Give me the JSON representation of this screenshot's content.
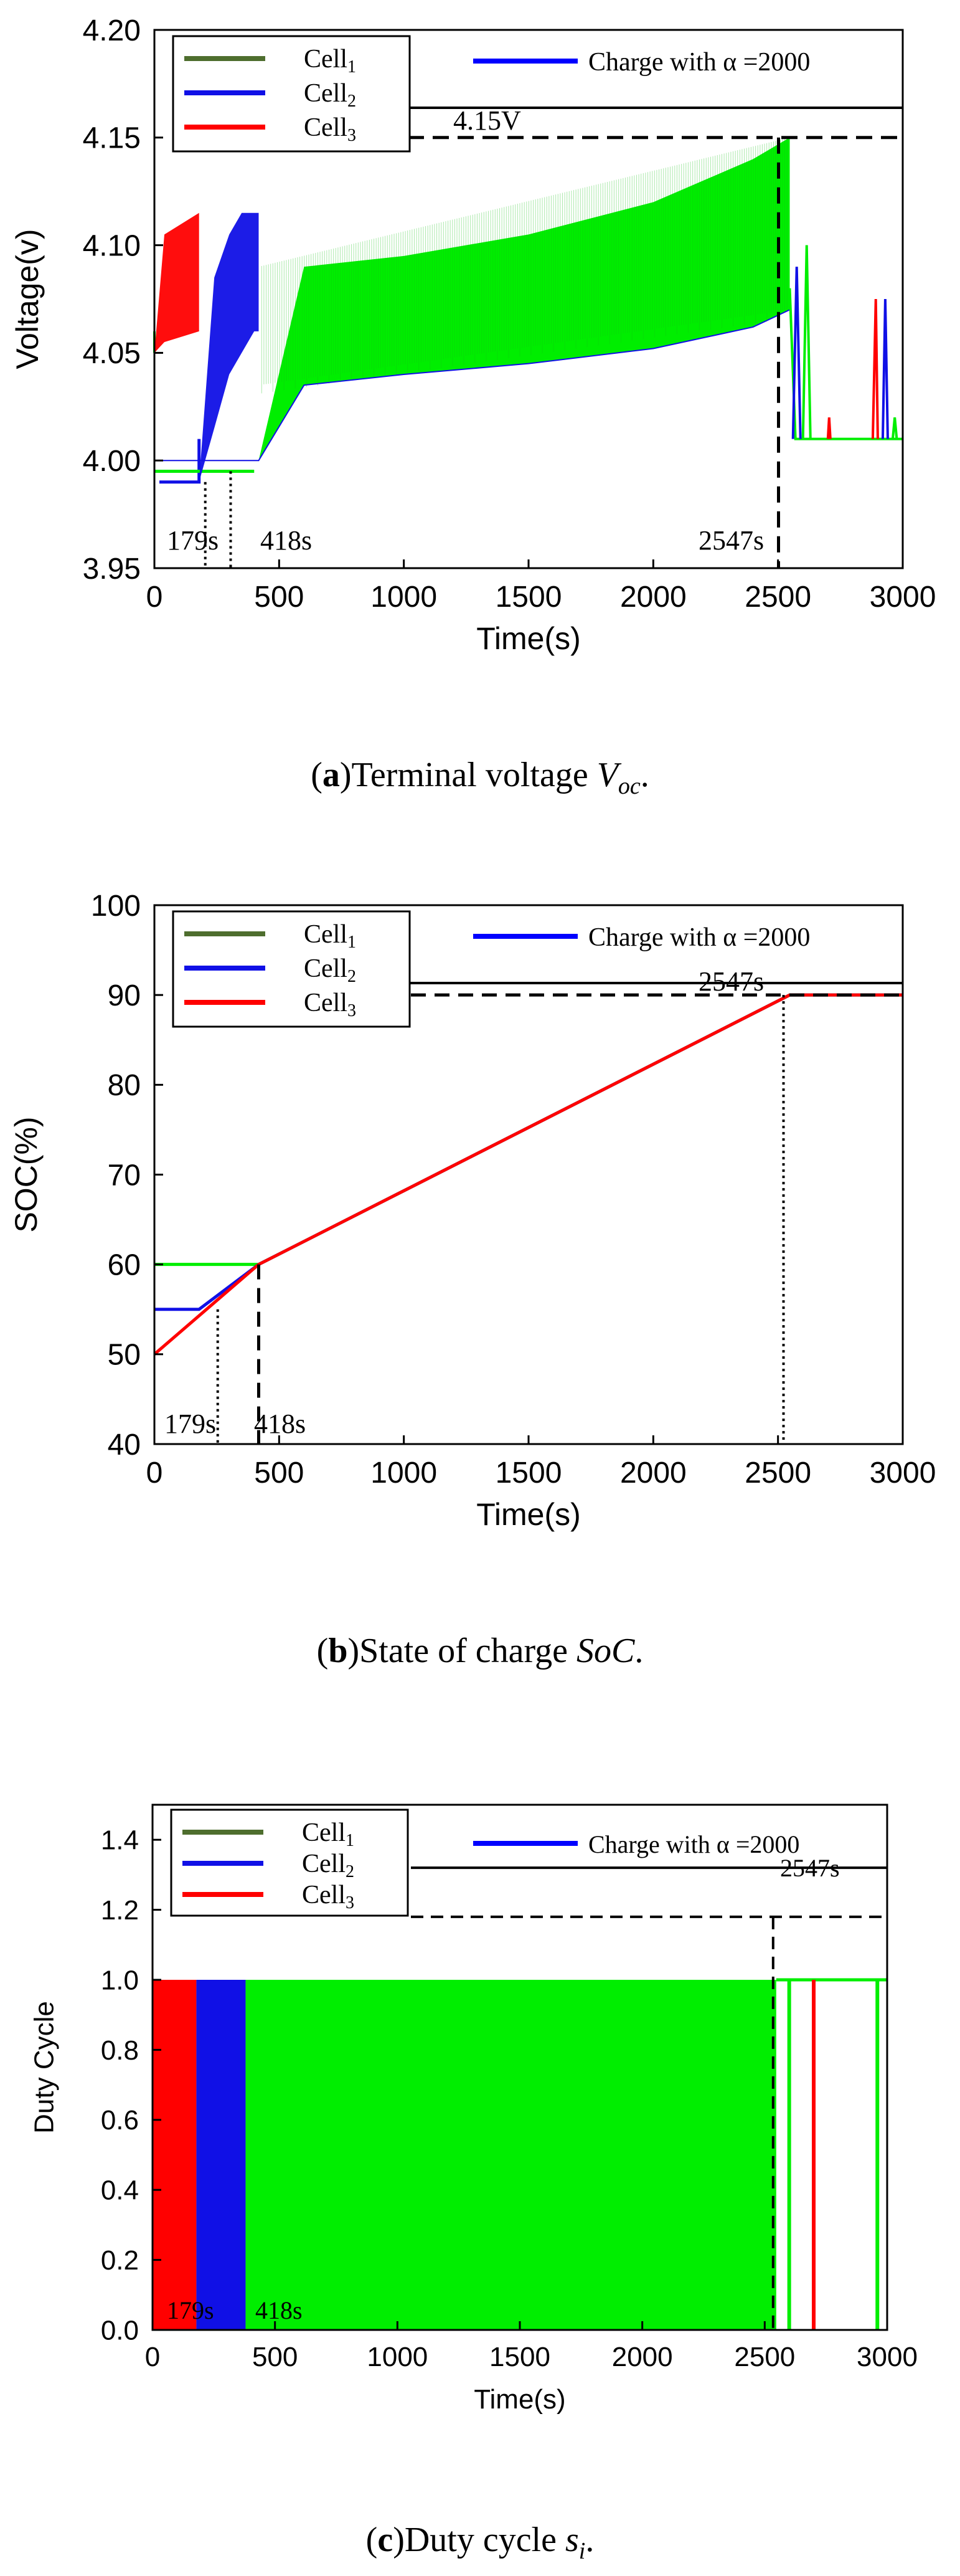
{
  "colors": {
    "cell1": "#4e6e2e",
    "cell2": "#1010e6",
    "cell3": "#ff0000",
    "charge": "#0000ff",
    "fill_green": "#00ee00"
  },
  "legend": {
    "cell1": {
      "base": "Cell",
      "sub": "1"
    },
    "cell2": {
      "base": "Cell",
      "sub": "2"
    },
    "cell3": {
      "base": "Cell",
      "sub": "3"
    },
    "charge": "Charge with  α =2000"
  },
  "chart_data": [
    {
      "id": "a",
      "type": "line",
      "title": "",
      "xlabel": "Time(s)",
      "ylabel": "Voltage(v)",
      "xlim": [
        0,
        3000
      ],
      "ylim": [
        3.95,
        4.2
      ],
      "xticks": [
        "0",
        "500",
        "1000",
        "1500",
        "2000",
        "2500",
        "3000"
      ],
      "yticks": [
        "3.95",
        "4.00",
        "4.05",
        "4.10",
        "4.15",
        "4.20"
      ],
      "ytick_values": [
        3.95,
        4.0,
        4.05,
        4.1,
        4.15,
        4.2
      ],
      "annotations": {
        "t1": "179s",
        "t2": "418s",
        "t3": "2547s",
        "v": "4.15V"
      },
      "marks": {
        "t1": 179,
        "t2": 418,
        "t3": 2547,
        "v": 4.15
      },
      "series": [
        {
          "name": "Cell1",
          "note": "oscillating band (lower/upper envelopes)",
          "x": [
            0,
            418,
            600,
            1000,
            1500,
            2000,
            2400,
            2547
          ],
          "lower": [
            4.0,
            4.0,
            4.035,
            4.04,
            4.045,
            4.052,
            4.062,
            4.07
          ],
          "upper": [
            4.0,
            4.0,
            4.09,
            4.095,
            4.105,
            4.12,
            4.14,
            4.15
          ]
        },
        {
          "name": "Cell2",
          "x": [
            0,
            179,
            240,
            300,
            350,
            400,
            418
          ],
          "lower": [
            3.99,
            3.99,
            4.015,
            4.04,
            4.05,
            4.06,
            4.06
          ],
          "upper": [
            3.99,
            3.99,
            4.085,
            4.105,
            4.115,
            4.115,
            4.115
          ]
        },
        {
          "name": "Cell3",
          "x": [
            0,
            40,
            179
          ],
          "lower": [
            4.05,
            4.055,
            4.06
          ],
          "upper": [
            4.05,
            4.105,
            4.115
          ]
        }
      ],
      "caption": {
        "label": "a",
        "text": "Terminal voltage ",
        "var": "V",
        "sub": "oc",
        "end": "."
      }
    },
    {
      "id": "b",
      "type": "line",
      "title": "",
      "xlabel": "Time(s)",
      "ylabel": "SOC(%)",
      "xlim": [
        0,
        3000
      ],
      "ylim": [
        40,
        100
      ],
      "xticks": [
        "0",
        "500",
        "1000",
        "1500",
        "2000",
        "2500",
        "3000"
      ],
      "yticks": [
        "40",
        "50",
        "60",
        "70",
        "80",
        "90",
        "100"
      ],
      "ytick_values": [
        40,
        50,
        60,
        70,
        80,
        90,
        100
      ],
      "annotations": {
        "t1": "179s",
        "t2": "418s",
        "t3": "2547s"
      },
      "marks": {
        "t1": 179,
        "t2": 418,
        "t3": 2547,
        "soc": 90
      },
      "series": [
        {
          "name": "Cell1",
          "x": [
            0,
            418,
            2547,
            3000
          ],
          "y": [
            60,
            60,
            90,
            90
          ]
        },
        {
          "name": "Cell2",
          "x": [
            0,
            179,
            418,
            2547,
            3000
          ],
          "y": [
            55,
            55,
            60,
            90,
            90
          ]
        },
        {
          "name": "Cell3",
          "x": [
            0,
            418,
            2547,
            3000
          ],
          "y": [
            50,
            60,
            90,
            90
          ]
        }
      ],
      "caption": {
        "label": "b",
        "text": "State of charge ",
        "var": "SoC",
        "sub": "",
        "end": "."
      }
    },
    {
      "id": "c",
      "type": "area",
      "title": "",
      "xlabel": "Time(s)",
      "ylabel": "Duty Cycle",
      "xlim": [
        0,
        3000
      ],
      "ylim": [
        0.0,
        1.5
      ],
      "xticks": [
        "0",
        "500",
        "1000",
        "1500",
        "2000",
        "2500",
        "3000"
      ],
      "yticks": [
        "0.0",
        "0.2",
        "0.4",
        "0.6",
        "0.8",
        "1.0",
        "1.2",
        "1.4"
      ],
      "ytick_values": [
        0.0,
        0.2,
        0.4,
        0.6,
        0.8,
        1.0,
        1.2,
        1.4
      ],
      "annotations": {
        "t1": "179s",
        "t2": "418s",
        "t3": "2547s"
      },
      "marks": {
        "t3": 2547,
        "line_y": 1.32,
        "dash_y": 1.18
      },
      "series": [
        {
          "name": "Cell3",
          "blocks": [
            [
              0,
              179
            ]
          ],
          "y": 1.0
        },
        {
          "name": "Cell2",
          "blocks": [
            [
              179,
              380
            ]
          ],
          "y": 1.0
        },
        {
          "name": "Cell1",
          "blocks": [
            [
              380,
              2547
            ]
          ],
          "y": 1.0
        }
      ],
      "spikes": [
        {
          "name": "Cell1",
          "x": 2600
        },
        {
          "name": "Cell3",
          "x": 2700
        },
        {
          "name": "Cell1",
          "x": 2960
        }
      ],
      "caption": {
        "label": "c",
        "text": "Duty cycle ",
        "var": "s",
        "sub": "i",
        "end": "."
      }
    }
  ]
}
